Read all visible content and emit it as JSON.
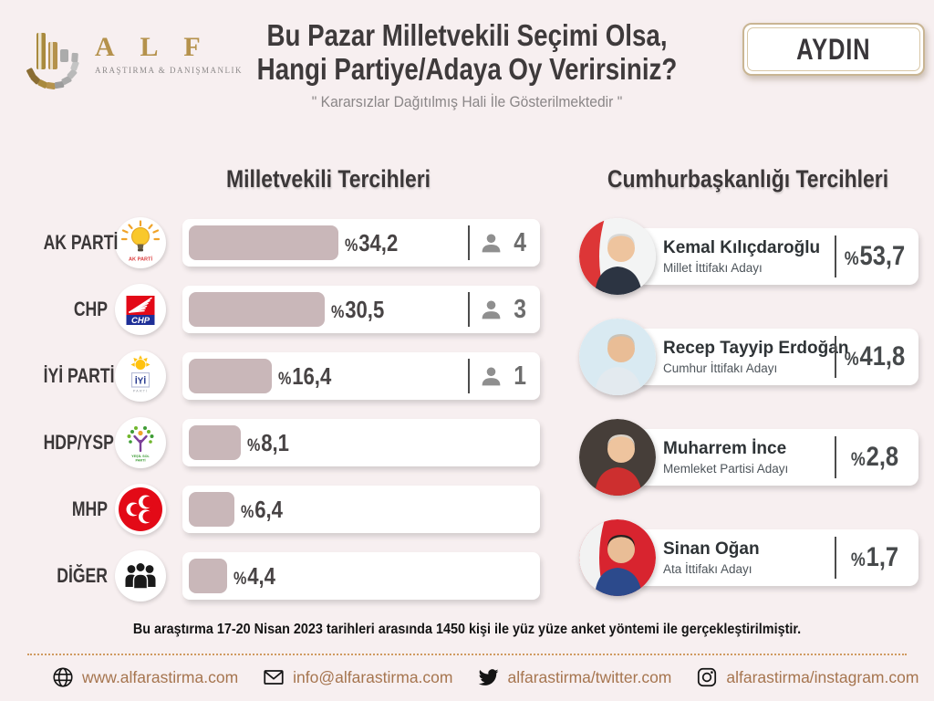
{
  "logo": {
    "brand": "A L F",
    "tagline": "ARAŞTIRMA & DANIŞMANLIK"
  },
  "header": {
    "title_line1": "Bu Pazar Milletvekili Seçimi Olsa,",
    "title_line2": "Hangi Partiye/Adaya Oy Verirsiniz?",
    "subtitle": "\" Kararsızlar Dağıtılmış Hali İle Gösterilmektedir \"",
    "region_badge": "AYDIN"
  },
  "left_section": {
    "title": "Milletvekili Tercihleri",
    "rows": [
      {
        "party": "AK PARTİ",
        "icon_key": "akparti",
        "logo_text": "AK PARTİ",
        "value": "%34,2",
        "pct": 34.2,
        "seats": "4"
      },
      {
        "party": "CHP",
        "icon_key": "chp",
        "logo_text": "CHP",
        "value": "%30,5",
        "pct": 30.5,
        "seats": "3"
      },
      {
        "party": "İYİ PARTİ",
        "icon_key": "iyi",
        "logo_text": "İYİ PARTİ",
        "value": "%16,4",
        "pct": 16.4,
        "seats": "1"
      },
      {
        "party": "HDP/YSP",
        "icon_key": "hdpysp",
        "logo_text": "YEŞİL SOL PARTİ",
        "value": "%8,1",
        "pct": 8.1,
        "seats": null
      },
      {
        "party": "MHP",
        "icon_key": "mhp",
        "logo_text": "",
        "value": "%6,4",
        "pct": 6.4,
        "seats": null
      },
      {
        "party": "DİĞER",
        "icon_key": "diger",
        "logo_text": "",
        "value": "%4,4",
        "pct": 4.4,
        "seats": null
      }
    ]
  },
  "right_section": {
    "title": "Cumhurbaşkanlığı Tercihleri",
    "candidates": [
      {
        "name": "Kemal Kılıçdaroğlu",
        "subtitle": "Millet İttifakı Adayı",
        "value": "%53,7",
        "pct": 53.7,
        "portrait": {
          "bg": "#f3f4f4",
          "accent": "#dd3637",
          "skin": "#eec49e",
          "hair": "#d8d8d6",
          "torso": "#2c3442"
        }
      },
      {
        "name": "Recep Tayyip Erdoğan",
        "subtitle": "Cumhur İttifakı Adayı",
        "value": "%41,8",
        "pct": 41.8,
        "portrait": {
          "bg": "#d9eaf2",
          "accent": "",
          "skin": "#e9bd96",
          "hair": "#c9c2b6",
          "torso": "#e3eaef"
        }
      },
      {
        "name": "Muharrem İnce",
        "subtitle": "Memleket Partisi Adayı",
        "value": "%2,8",
        "pct": 2.8,
        "portrait": {
          "bg": "#463e39",
          "accent": "",
          "skin": "#eec49e",
          "hair": "#d9d2c8",
          "torso": "#cd2f2f"
        }
      },
      {
        "name": "Sinan Oğan",
        "subtitle": "Ata İttifakı Adayı",
        "value": "%1,7",
        "pct": 1.7,
        "portrait": {
          "bg": "#d8242f",
          "accent": "#f2f2f2",
          "skin": "#e9bd96",
          "hair": "#27221f",
          "torso": "#2c4a8c"
        }
      }
    ]
  },
  "footnote": "Bu araştırma 17-20 Nisan 2023 tarihleri arasında 1450 kişi ile yüz yüze anket yöntemi ile gerçekleştirilmiştir.",
  "footer": {
    "items": [
      {
        "icon": "globe-icon",
        "label": "www.alfarastirma.com"
      },
      {
        "icon": "email-icon",
        "label": "info@alfarastirma.com"
      },
      {
        "icon": "twitter-icon",
        "label": "alfarastirma/twitter.com"
      },
      {
        "icon": "instagram-icon",
        "label": "alfarastirma/instagram.com"
      }
    ]
  },
  "colors": {
    "background": "#f7eff0",
    "card": "#ffffff",
    "bar_fill": "#c9b7b9",
    "title_text": "#3e3a3b",
    "accent_gold": "#b5924c",
    "badge_border": "#c9b593",
    "footer_link": "#a6754f",
    "dotted_divider": "#cf9a5f"
  },
  "chart_data": [
    {
      "type": "bar",
      "orientation": "horizontal",
      "title": "Milletvekili Tercihleri",
      "categories": [
        "AK PARTİ",
        "CHP",
        "İYİ PARTİ",
        "HDP/YSP",
        "MHP",
        "DİĞER"
      ],
      "values": [
        34.2,
        30.5,
        16.4,
        8.1,
        6.4,
        4.4
      ],
      "value_labels": [
        "%34,2",
        "%30,5",
        "%16,4",
        "%8,1",
        "%6,4",
        "%4,4"
      ],
      "seats": [
        4,
        3,
        1,
        null,
        null,
        null
      ],
      "unit": "percent",
      "xlim": [
        0,
        40
      ],
      "grid": false,
      "legend": false
    },
    {
      "type": "bar",
      "orientation": "list",
      "title": "Cumhurbaşkanlığı Tercihleri",
      "categories": [
        "Kemal Kılıçdaroğlu",
        "Recep Tayyip Erdoğan",
        "Muharrem İnce",
        "Sinan Oğan"
      ],
      "category_subtitles": [
        "Millet İttifakı Adayı",
        "Cumhur İttifakı Adayı",
        "Memleket Partisi Adayı",
        "Ata İttifakı Adayı"
      ],
      "values": [
        53.7,
        41.8,
        2.8,
        1.7
      ],
      "value_labels": [
        "%53,7",
        "%41,8",
        "%2,8",
        "%1,7"
      ],
      "unit": "percent",
      "grid": false,
      "legend": false
    }
  ]
}
